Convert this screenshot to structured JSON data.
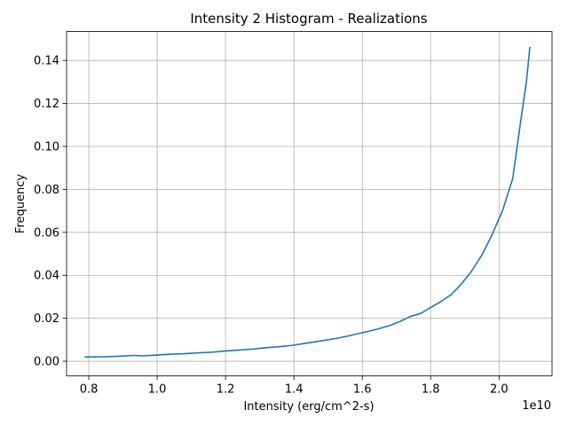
{
  "chart_data": {
    "type": "line",
    "title": "Intensity 2 Histogram - Realizations",
    "xlabel": "Intensity (erg/cm^2-s)",
    "ylabel": "Frequency",
    "x_offset_label": "1e10",
    "x_scale": 10000000000,
    "xlim": [
      7350000000.0,
      21550000000.0
    ],
    "ylim": [
      -0.0068,
      0.1535
    ],
    "grid": true,
    "legend": "none",
    "x_ticks": [
      8000000000.0,
      10000000000.0,
      12000000000.0,
      14000000000.0,
      16000000000.0,
      18000000000.0,
      20000000000.0
    ],
    "x_tick_labels": [
      "0.8",
      "1.0",
      "1.2",
      "1.4",
      "1.6",
      "1.8",
      "2.0"
    ],
    "y_ticks": [
      0.0,
      0.02,
      0.04,
      0.06,
      0.08,
      0.1,
      0.12,
      0.14
    ],
    "y_tick_labels": [
      "0.00",
      "0.02",
      "0.04",
      "0.06",
      "0.08",
      "0.10",
      "0.12",
      "0.14"
    ],
    "series": [
      {
        "color": "#1f77b4",
        "x": [
          7900000000.0,
          8500000000.0,
          9000000000.0,
          9300000000.0,
          9600000000.0,
          10000000000.0,
          10400000000.0,
          10800000000.0,
          11200000000.0,
          11600000000.0,
          12000000000.0,
          12400000000.0,
          12800000000.0,
          13200000000.0,
          13600000000.0,
          14000000000.0,
          14400000000.0,
          14800000000.0,
          15200000000.0,
          15600000000.0,
          16000000000.0,
          16400000000.0,
          16800000000.0,
          17100000000.0,
          17400000000.0,
          17700000000.0,
          18000000000.0,
          18300000000.0,
          18600000000.0,
          18900000000.0,
          19200000000.0,
          19500000000.0,
          19800000000.0,
          20100000000.0,
          20400000000.0,
          20600000000.0,
          20800000000.0,
          20900000000.0
        ],
        "y": [
          0.002,
          0.0021,
          0.0024,
          0.0027,
          0.0025,
          0.0029,
          0.0033,
          0.0035,
          0.0039,
          0.0042,
          0.0048,
          0.0052,
          0.0057,
          0.0063,
          0.0068,
          0.0075,
          0.0085,
          0.0095,
          0.0105,
          0.0118,
          0.0133,
          0.0148,
          0.0166,
          0.0185,
          0.0208,
          0.0222,
          0.025,
          0.0278,
          0.031,
          0.036,
          0.042,
          0.0495,
          0.059,
          0.07,
          0.085,
          0.108,
          0.13,
          0.146
        ]
      }
    ]
  }
}
